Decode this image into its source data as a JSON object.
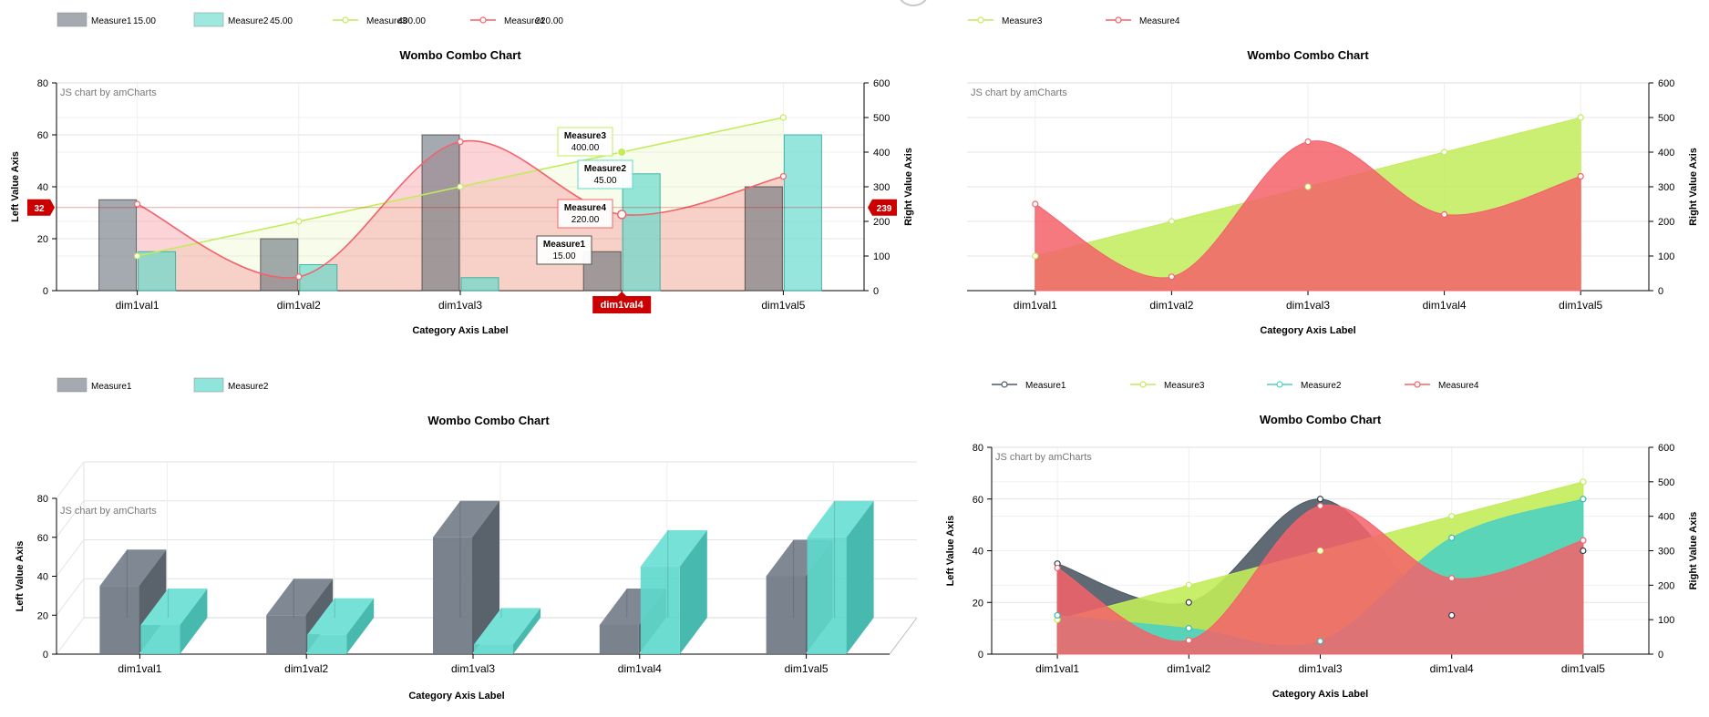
{
  "charts": [
    {
      "id": "combo",
      "title": "Wombo Combo Chart",
      "credit": "JS chart by amCharts",
      "xlabel": "Category Axis Label",
      "ylabel_left": "Left Value Axis",
      "ylabel_right": "Right Value Axis",
      "categories": [
        "dim1val1",
        "dim1val2",
        "dim1val3",
        "dim1val4",
        "dim1val5"
      ],
      "left_ticks": [
        "0",
        "20",
        "40",
        "60",
        "80"
      ],
      "right_ticks": [
        "0",
        "100",
        "200",
        "300",
        "400",
        "500",
        "600"
      ],
      "legend": [
        {
          "name": "Measure1",
          "value": "15.00"
        },
        {
          "name": "Measure2",
          "value": "45.00"
        },
        {
          "name": "Measure3",
          "value": "400.00"
        },
        {
          "name": "Measure4",
          "value": "220.00"
        }
      ],
      "cursor": {
        "category": "dim1val4",
        "left_value": "32",
        "right_value": "239"
      },
      "balloons": [
        {
          "name": "Measure3",
          "value": "400.00"
        },
        {
          "name": "Measure2",
          "value": "45.00"
        },
        {
          "name": "Measure4",
          "value": "220.00"
        },
        {
          "name": "Measure1",
          "value": "15.00"
        }
      ]
    },
    {
      "id": "area",
      "title": "Wombo Combo Chart",
      "credit": "JS chart by amCharts",
      "xlabel": "Category Axis Label",
      "ylabel_right": "Right Value Axis",
      "categories": [
        "dim1val1",
        "dim1val2",
        "dim1val3",
        "dim1val4",
        "dim1val5"
      ],
      "right_ticks": [
        "0",
        "100",
        "200",
        "300",
        "400",
        "500",
        "600"
      ],
      "legend": [
        {
          "name": "Measure3"
        },
        {
          "name": "Measure4"
        }
      ]
    },
    {
      "id": "bars3d",
      "title": "Wombo Combo Chart",
      "credit": "JS chart by amCharts",
      "xlabel": "Category Axis Label",
      "ylabel_left": "Left Value Axis",
      "categories": [
        "dim1val1",
        "dim1val2",
        "dim1val3",
        "dim1val4",
        "dim1val5"
      ],
      "left_ticks": [
        "0",
        "20",
        "40",
        "60",
        "80"
      ],
      "legend": [
        {
          "name": "Measure1"
        },
        {
          "name": "Measure2"
        }
      ]
    },
    {
      "id": "mixed",
      "title": "Wombo Combo Chart",
      "credit": "JS chart by amCharts",
      "xlabel": "Category Axis Label",
      "ylabel_left": "Left Value Axis",
      "ylabel_right": "Right Value Axis",
      "categories": [
        "dim1val1",
        "dim1val2",
        "dim1val3",
        "dim1val4",
        "dim1val5"
      ],
      "left_ticks": [
        "0",
        "20",
        "40",
        "60",
        "80"
      ],
      "right_ticks": [
        "0",
        "100",
        "200",
        "300",
        "400",
        "500",
        "600"
      ],
      "legend": [
        {
          "name": "Measure1"
        },
        {
          "name": "Measure3"
        },
        {
          "name": "Measure2"
        },
        {
          "name": "Measure4"
        }
      ]
    }
  ],
  "colors": {
    "measure1": "#67717c",
    "measure2": "#5fd8cc",
    "measure3": "#c2ec5a",
    "measure4": "#f4616a",
    "cursor": "#cc0000"
  },
  "chart_data": [
    {
      "type": "combo (bar + smoothed line/area)",
      "title": "Wombo Combo Chart",
      "xlabel": "Category Axis Label",
      "ylabel": "Left Value Axis",
      "y2label": "Right Value Axis",
      "categories": [
        "dim1val1",
        "dim1val2",
        "dim1val3",
        "dim1val4",
        "dim1val5"
      ],
      "ylim": [
        0,
        80
      ],
      "y2lim": [
        0,
        600
      ],
      "series": [
        {
          "name": "Measure1",
          "type": "bar",
          "axis": "left",
          "values": [
            35,
            20,
            60,
            15,
            40
          ]
        },
        {
          "name": "Measure2",
          "type": "bar",
          "axis": "left",
          "values": [
            15,
            10,
            5,
            45,
            60
          ]
        },
        {
          "name": "Measure3",
          "type": "line+fill",
          "axis": "right",
          "values": [
            100,
            200,
            300,
            400,
            500
          ]
        },
        {
          "name": "Measure4",
          "type": "smoothed line+fill",
          "axis": "right",
          "values": [
            250,
            40,
            430,
            220,
            330
          ]
        }
      ]
    },
    {
      "type": "area (smoothed)",
      "title": "Wombo Combo Chart",
      "xlabel": "Category Axis Label",
      "y2label": "Right Value Axis",
      "categories": [
        "dim1val1",
        "dim1val2",
        "dim1val3",
        "dim1val4",
        "dim1val5"
      ],
      "y2lim": [
        0,
        600
      ],
      "series": [
        {
          "name": "Measure3",
          "axis": "right",
          "values": [
            100,
            200,
            300,
            400,
            500
          ]
        },
        {
          "name": "Measure4",
          "axis": "right",
          "values": [
            250,
            40,
            430,
            220,
            330
          ]
        }
      ]
    },
    {
      "type": "bar (3D)",
      "title": "Wombo Combo Chart",
      "xlabel": "Category Axis Label",
      "ylabel": "Left Value Axis",
      "categories": [
        "dim1val1",
        "dim1val2",
        "dim1val3",
        "dim1val4",
        "dim1val5"
      ],
      "ylim": [
        0,
        80
      ],
      "series": [
        {
          "name": "Measure1",
          "values": [
            35,
            20,
            60,
            15,
            40
          ]
        },
        {
          "name": "Measure2",
          "values": [
            15,
            10,
            5,
            45,
            60
          ]
        }
      ]
    },
    {
      "type": "area (smoothed, multi-axis)",
      "title": "Wombo Combo Chart",
      "xlabel": "Category Axis Label",
      "ylabel": "Left Value Axis",
      "y2label": "Right Value Axis",
      "categories": [
        "dim1val1",
        "dim1val2",
        "dim1val3",
        "dim1val4",
        "dim1val5"
      ],
      "ylim": [
        0,
        80
      ],
      "y2lim": [
        0,
        600
      ],
      "series": [
        {
          "name": "Measure1",
          "axis": "left",
          "values": [
            35,
            20,
            60,
            15,
            40
          ]
        },
        {
          "name": "Measure3",
          "axis": "right",
          "values": [
            100,
            200,
            300,
            400,
            500
          ]
        },
        {
          "name": "Measure2",
          "axis": "left",
          "values": [
            15,
            10,
            5,
            45,
            60
          ]
        },
        {
          "name": "Measure4",
          "axis": "right",
          "values": [
            250,
            40,
            430,
            220,
            330
          ]
        }
      ]
    }
  ]
}
